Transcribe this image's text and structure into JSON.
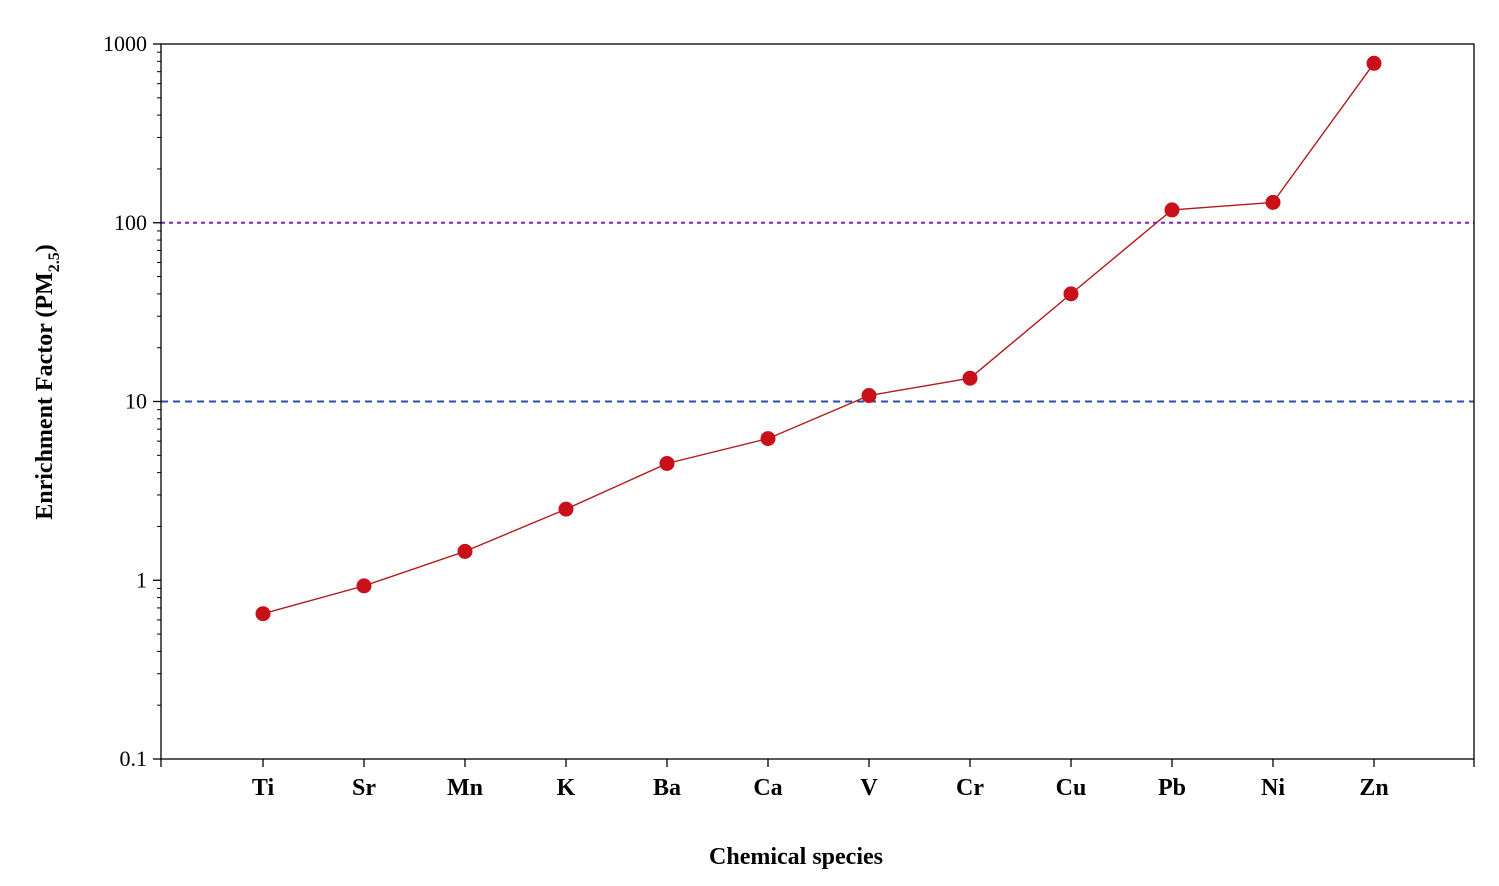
{
  "chart_data": {
    "type": "line",
    "xlabel": "Chemical species",
    "ylabel_main": "Enrichment Factor (PM",
    "ylabel_sub": "2.5",
    "ylabel_close": ")",
    "yscale": "log",
    "ylim": [
      0.1,
      1000
    ],
    "yticks": [
      0.1,
      1,
      10,
      100,
      1000
    ],
    "yticklabels": [
      "0.1",
      "1",
      "10",
      "100",
      "1000"
    ],
    "categories": [
      "Ti",
      "Sr",
      "Mn",
      "K",
      "Ba",
      "Ca",
      "V",
      "Cr",
      "Cu",
      "Pb",
      "Ni",
      "Zn"
    ],
    "series": [
      {
        "values": [
          0.65,
          0.93,
          1.45,
          2.5,
          4.5,
          6.2,
          10.8,
          13.5,
          40,
          118,
          130,
          780
        ]
      }
    ],
    "reference_lines": [
      {
        "y": 100,
        "color": "#7b1fc2",
        "style": "dotted"
      },
      {
        "y": 10,
        "color": "#2a4fa8",
        "style": "dashed"
      }
    ],
    "colors": {
      "marker": "#c8101a",
      "line": "#b01a1a",
      "axis": "#000000"
    },
    "grid": false
  }
}
